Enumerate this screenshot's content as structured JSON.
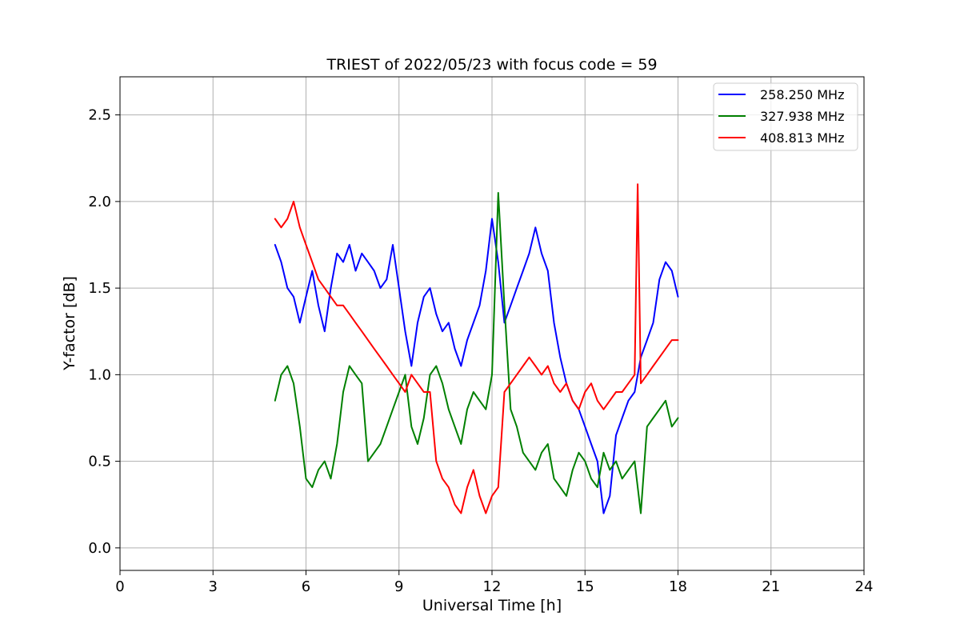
{
  "chart_data": {
    "type": "line",
    "title": "TRIEST of 2022/05/23 with focus code = 59",
    "xlabel": "Universal Time [h]",
    "ylabel": "Y-factor [dB]",
    "xlim": [
      0,
      24
    ],
    "ylim": [
      -0.13,
      2.72
    ],
    "x_ticks": [
      0,
      3,
      6,
      9,
      12,
      15,
      18,
      21,
      24
    ],
    "y_ticks": [
      0.0,
      0.5,
      1.0,
      1.5,
      2.0,
      2.5
    ],
    "x_tick_labels": [
      "0",
      "3",
      "6",
      "9",
      "12",
      "15",
      "18",
      "21",
      "24"
    ],
    "y_tick_labels": [
      "0.0",
      "0.5",
      "1.0",
      "1.5",
      "2.0",
      "2.5"
    ],
    "grid": true,
    "legend_position": "top-right",
    "series": [
      {
        "name": "258.250 MHz",
        "color": "#0000ff",
        "x": [
          5.0,
          5.2,
          5.4,
          5.6,
          5.8,
          6.0,
          6.2,
          6.4,
          6.6,
          6.8,
          7.0,
          7.2,
          7.4,
          7.6,
          7.8,
          8.0,
          8.2,
          8.4,
          8.6,
          8.8,
          9.0,
          9.2,
          9.4,
          9.6,
          9.8,
          10.0,
          10.2,
          10.4,
          10.6,
          10.8,
          11.0,
          11.2,
          11.4,
          11.6,
          11.8,
          12.0,
          12.2,
          12.4,
          12.6,
          12.8,
          13.0,
          13.2,
          13.4,
          13.6,
          13.8,
          14.0,
          14.2,
          14.4,
          14.6,
          14.8,
          15.0,
          15.2,
          15.4,
          15.6,
          15.8,
          16.0,
          16.2,
          16.4,
          16.6,
          16.8,
          17.0,
          17.2,
          17.4,
          17.6,
          17.8,
          18.0
        ],
        "values": [
          1.75,
          1.65,
          1.5,
          1.45,
          1.3,
          1.45,
          1.6,
          1.4,
          1.25,
          1.5,
          1.7,
          1.65,
          1.75,
          1.6,
          1.7,
          1.65,
          1.6,
          1.5,
          1.55,
          1.75,
          1.5,
          1.25,
          1.05,
          1.3,
          1.45,
          1.5,
          1.35,
          1.25,
          1.3,
          1.15,
          1.05,
          1.2,
          1.3,
          1.4,
          1.6,
          1.9,
          1.65,
          1.3,
          1.4,
          1.5,
          1.6,
          1.7,
          1.85,
          1.7,
          1.6,
          1.3,
          1.1,
          0.95,
          0.85,
          0.8,
          0.7,
          0.6,
          0.5,
          0.2,
          0.3,
          0.65,
          0.75,
          0.85,
          0.9,
          1.1,
          1.2,
          1.3,
          1.55,
          1.65,
          1.6,
          1.45
        ]
      },
      {
        "name": "327.938 MHz",
        "color": "#008000",
        "x": [
          5.0,
          5.2,
          5.4,
          5.6,
          5.8,
          6.0,
          6.2,
          6.4,
          6.6,
          6.8,
          7.0,
          7.2,
          7.4,
          7.6,
          7.8,
          8.0,
          8.2,
          8.4,
          8.6,
          8.8,
          9.0,
          9.2,
          9.4,
          9.6,
          9.8,
          10.0,
          10.2,
          10.4,
          10.6,
          10.8,
          11.0,
          11.2,
          11.4,
          11.6,
          11.8,
          12.0,
          12.2,
          12.4,
          12.6,
          12.8,
          13.0,
          13.2,
          13.4,
          13.6,
          13.8,
          14.0,
          14.2,
          14.4,
          14.6,
          14.8,
          15.0,
          15.2,
          15.4,
          15.6,
          15.8,
          16.0,
          16.2,
          16.4,
          16.6,
          16.8,
          17.0,
          17.2,
          17.4,
          17.6,
          17.8,
          18.0
        ],
        "values": [
          0.85,
          1.0,
          1.05,
          0.95,
          0.7,
          0.4,
          0.35,
          0.45,
          0.5,
          0.4,
          0.6,
          0.9,
          1.05,
          1.0,
          0.95,
          0.5,
          0.55,
          0.6,
          0.7,
          0.8,
          0.9,
          1.0,
          0.7,
          0.6,
          0.75,
          1.0,
          1.05,
          0.95,
          0.8,
          0.7,
          0.6,
          0.8,
          0.9,
          0.85,
          0.8,
          1.0,
          2.05,
          1.4,
          0.8,
          0.7,
          0.55,
          0.5,
          0.45,
          0.55,
          0.6,
          0.4,
          0.35,
          0.3,
          0.45,
          0.55,
          0.5,
          0.4,
          0.35,
          0.55,
          0.45,
          0.5,
          0.4,
          0.45,
          0.5,
          0.2,
          0.7,
          0.75,
          0.8,
          0.85,
          0.7,
          0.75
        ]
      },
      {
        "name": "408.813 MHz",
        "color": "#ff0000",
        "x": [
          5.0,
          5.2,
          5.4,
          5.6,
          5.8,
          6.0,
          6.2,
          6.4,
          6.6,
          6.8,
          7.0,
          7.2,
          7.4,
          7.6,
          7.8,
          8.0,
          8.2,
          8.4,
          8.6,
          8.8,
          9.0,
          9.2,
          9.4,
          9.6,
          9.8,
          10.0,
          10.2,
          10.4,
          10.6,
          10.8,
          11.0,
          11.2,
          11.4,
          11.6,
          11.8,
          12.0,
          12.2,
          12.4,
          12.6,
          12.8,
          13.0,
          13.2,
          13.4,
          13.6,
          13.8,
          14.0,
          14.2,
          14.4,
          14.6,
          14.8,
          15.0,
          15.2,
          15.4,
          15.6,
          15.8,
          16.0,
          16.2,
          16.4,
          16.6,
          16.7,
          16.8,
          17.0,
          17.2,
          17.4,
          17.6,
          17.8,
          18.0
        ],
        "values": [
          1.9,
          1.85,
          1.9,
          2.0,
          1.85,
          1.75,
          1.65,
          1.55,
          1.5,
          1.45,
          1.4,
          1.4,
          1.35,
          1.3,
          1.25,
          1.2,
          1.15,
          1.1,
          1.05,
          1.0,
          0.95,
          0.9,
          1.0,
          0.95,
          0.9,
          0.9,
          0.5,
          0.4,
          0.35,
          0.25,
          0.2,
          0.35,
          0.45,
          0.3,
          0.2,
          0.3,
          0.35,
          0.9,
          0.95,
          1.0,
          1.05,
          1.1,
          1.05,
          1.0,
          1.05,
          0.95,
          0.9,
          0.95,
          0.85,
          0.8,
          0.9,
          0.95,
          0.85,
          0.8,
          0.85,
          0.9,
          0.9,
          0.95,
          1.0,
          2.1,
          0.95,
          1.0,
          1.05,
          1.1,
          1.15,
          1.2,
          1.2
        ]
      }
    ]
  }
}
